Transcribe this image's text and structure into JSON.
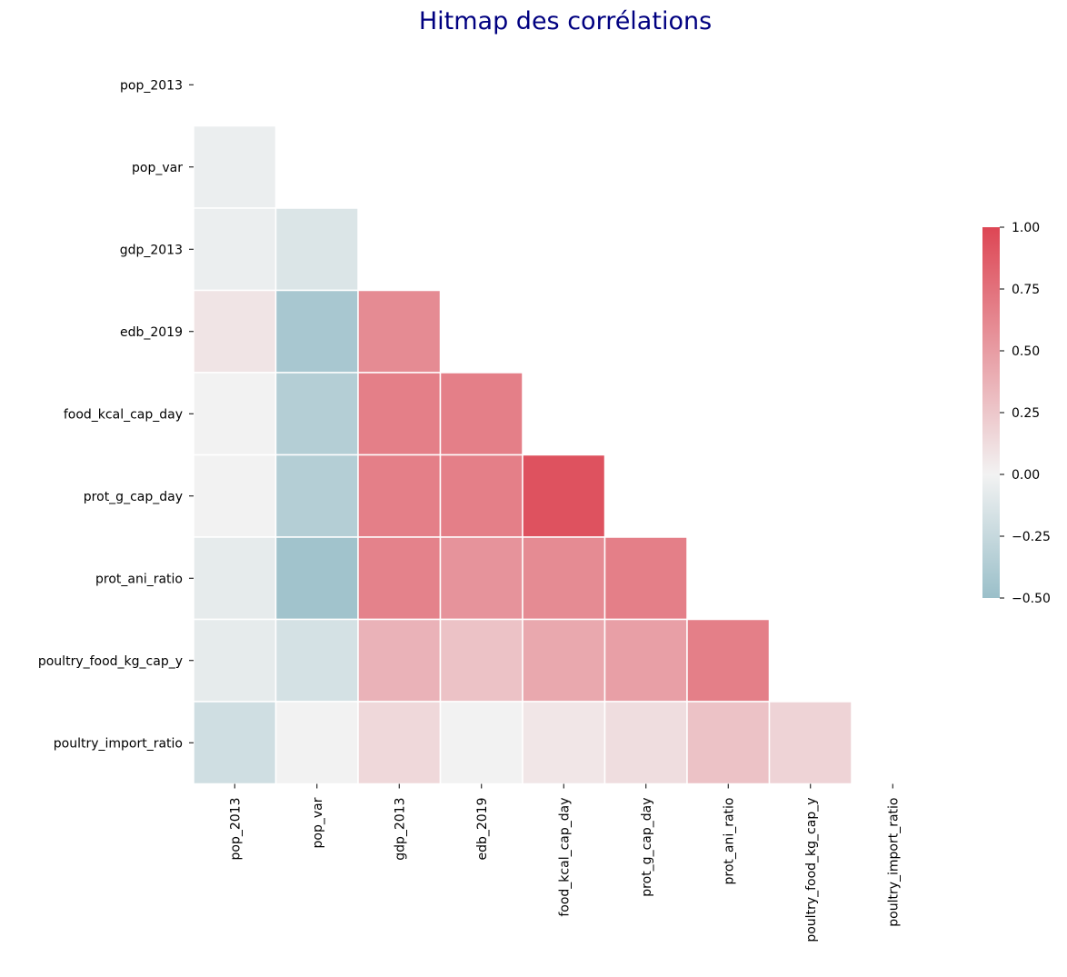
{
  "chart_data": {
    "type": "heatmap",
    "title": "Hitmap des corrélations",
    "variables": [
      "pop_2013",
      "pop_var",
      "gdp_2013",
      "edb_2019",
      "food_kcal_cap_day",
      "prot_g_cap_day",
      "prot_ani_ratio",
      "poultry_food_kg_cap_y",
      "poultry_import_ratio"
    ],
    "mask": "upper-triangle-including-diagonal",
    "matrix": [
      [
        1.0,
        -0.04,
        -0.04,
        0.08,
        0.0,
        0.0,
        -0.07,
        -0.07,
        -0.2
      ],
      [
        -0.04,
        1.0,
        -0.13,
        -0.42,
        -0.35,
        -0.35,
        -0.46,
        -0.17,
        0.0
      ],
      [
        -0.04,
        -0.13,
        1.0,
        0.6,
        0.67,
        0.67,
        0.65,
        0.37,
        0.15
      ],
      [
        0.08,
        -0.42,
        0.6,
        1.0,
        0.67,
        0.67,
        0.55,
        0.28,
        0.0
      ],
      [
        0.0,
        -0.35,
        0.67,
        0.67,
        1.0,
        0.93,
        0.6,
        0.43,
        0.07
      ],
      [
        0.0,
        -0.35,
        0.67,
        0.67,
        0.93,
        1.0,
        0.67,
        0.48,
        0.12
      ],
      [
        -0.07,
        -0.46,
        0.65,
        0.55,
        0.6,
        0.67,
        1.0,
        0.67,
        0.28
      ],
      [
        -0.07,
        -0.17,
        0.37,
        0.28,
        0.43,
        0.48,
        0.67,
        1.0,
        0.18
      ],
      [
        -0.2,
        0.0,
        0.15,
        0.0,
        0.07,
        0.12,
        0.28,
        0.18,
        1.0
      ]
    ],
    "colorbar": {
      "min": -0.5,
      "max": 1.0,
      "ticks": [
        1.0,
        0.75,
        0.5,
        0.25,
        0.0,
        -0.25,
        -0.5
      ],
      "tick_labels": [
        "1.00",
        "0.75",
        "0.50",
        "0.25",
        "0.00",
        "−0.25",
        "−0.50"
      ]
    },
    "colors": {
      "negative": "#9abfc9",
      "neutral": "#f2f2f2",
      "positive": "#dd4654"
    }
  }
}
